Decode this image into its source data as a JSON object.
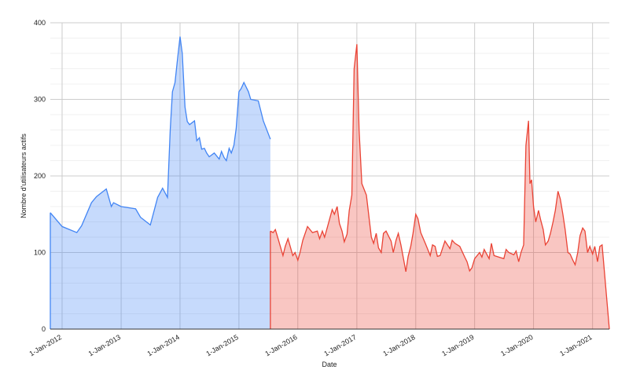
{
  "chart_data": {
    "type": "area",
    "xlabel": "Date",
    "ylabel": "Nombre d'utilisateurs actifs",
    "xlim": [
      "2011-10-20",
      "2021-04-15"
    ],
    "ylim": [
      0,
      400
    ],
    "xticks": [
      {
        "value": "2012-01-01",
        "label": "1-Jan-2012"
      },
      {
        "value": "2013-01-01",
        "label": "1-Jan-2013"
      },
      {
        "value": "2014-01-01",
        "label": "1-Jan-2014"
      },
      {
        "value": "2015-01-01",
        "label": "1-Jan-2015"
      },
      {
        "value": "2016-01-01",
        "label": "1-Jan-2016"
      },
      {
        "value": "2017-01-01",
        "label": "1-Jan-2017"
      },
      {
        "value": "2018-01-01",
        "label": "1-Jan-2018"
      },
      {
        "value": "2019-01-01",
        "label": "1-Jan-2019"
      },
      {
        "value": "2020-01-01",
        "label": "1-Jan-2020"
      },
      {
        "value": "2021-01-01",
        "label": "1-Jan-2021"
      }
    ],
    "yticks": [
      0,
      100,
      200,
      300,
      400
    ],
    "grid": true,
    "minor_grid_divisions": 5,
    "series": [
      {
        "color": "#4285f4",
        "x": [
          "2011-10-20",
          "2012-01-01",
          "2012-04-01",
          "2012-05-01",
          "2012-07-01",
          "2012-08-01",
          "2012-10-01",
          "2012-11-01",
          "2012-11-15",
          "2013-01-01",
          "2013-04-01",
          "2013-05-01",
          "2013-07-01",
          "2013-08-15",
          "2013-09-15",
          "2013-10-15",
          "2013-11-01",
          "2013-11-15",
          "2013-12-01",
          "2013-12-15",
          "2014-01-01",
          "2014-01-15",
          "2014-02-01",
          "2014-02-15",
          "2014-03-01",
          "2014-04-01",
          "2014-04-15",
          "2014-05-01",
          "2014-05-15",
          "2014-06-01",
          "2014-06-15",
          "2014-07-01",
          "2014-08-01",
          "2014-09-01",
          "2014-09-15",
          "2014-10-01",
          "2014-10-15",
          "2014-11-01",
          "2014-11-15",
          "2014-12-01",
          "2014-12-15",
          "2015-01-01",
          "2015-01-15",
          "2015-02-01",
          "2015-03-01",
          "2015-03-15",
          "2015-05-01",
          "2015-06-01",
          "2015-07-15"
        ],
        "values": [
          152,
          134,
          126,
          135,
          165,
          173,
          183,
          160,
          165,
          160,
          157,
          146,
          136,
          172,
          184,
          172,
          260,
          310,
          322,
          350,
          382,
          360,
          290,
          271,
          267,
          272,
          246,
          250,
          235,
          236,
          230,
          225,
          230,
          222,
          232,
          224,
          220,
          236,
          230,
          240,
          262,
          310,
          314,
          322,
          310,
          300,
          298,
          272,
          248
        ]
      },
      {
        "color": "#ea4335",
        "x": [
          "2015-07-15",
          "2015-08-01",
          "2015-08-15",
          "2015-09-01",
          "2015-10-01",
          "2015-10-15",
          "2015-11-01",
          "2015-11-15",
          "2015-12-01",
          "2015-12-15",
          "2016-01-01",
          "2016-01-15",
          "2016-02-01",
          "2016-03-01",
          "2016-04-01",
          "2016-05-01",
          "2016-05-15",
          "2016-06-01",
          "2016-06-15",
          "2016-07-01",
          "2016-08-01",
          "2016-08-15",
          "2016-09-01",
          "2016-09-15",
          "2016-10-01",
          "2016-10-15",
          "2016-11-01",
          "2016-11-15",
          "2016-12-01",
          "2016-12-15",
          "2017-01-01",
          "2017-01-15",
          "2017-02-01",
          "2017-03-01",
          "2017-04-01",
          "2017-04-15",
          "2017-05-01",
          "2017-05-15",
          "2017-06-01",
          "2017-06-15",
          "2017-07-01",
          "2017-08-01",
          "2017-08-15",
          "2017-09-01",
          "2017-09-15",
          "2017-10-01",
          "2017-10-15",
          "2017-11-01",
          "2017-11-15",
          "2017-12-01",
          "2017-12-15",
          "2018-01-01",
          "2018-01-15",
          "2018-02-01",
          "2018-03-01",
          "2018-04-01",
          "2018-04-15",
          "2018-05-01",
          "2018-05-15",
          "2018-06-01",
          "2018-07-01",
          "2018-08-01",
          "2018-08-15",
          "2018-09-01",
          "2018-10-01",
          "2018-11-01",
          "2018-11-15",
          "2018-12-01",
          "2018-12-15",
          "2019-01-01",
          "2019-02-01",
          "2019-02-15",
          "2019-03-01",
          "2019-04-01",
          "2019-04-15",
          "2019-05-01",
          "2019-06-01",
          "2019-07-01",
          "2019-07-15",
          "2019-08-01",
          "2019-09-01",
          "2019-09-15",
          "2019-10-01",
          "2019-10-15",
          "2019-11-01",
          "2019-11-15",
          "2019-12-01",
          "2019-12-10",
          "2019-12-20",
          "2020-01-01",
          "2020-01-15",
          "2020-02-01",
          "2020-02-15",
          "2020-03-01",
          "2020-03-15",
          "2020-04-01",
          "2020-04-15",
          "2020-05-01",
          "2020-05-15",
          "2020-06-01",
          "2020-06-15",
          "2020-07-01",
          "2020-07-15",
          "2020-08-01",
          "2020-08-15",
          "2020-09-01",
          "2020-09-15",
          "2020-10-01",
          "2020-10-15",
          "2020-11-01",
          "2020-11-15",
          "2020-12-01",
          "2020-12-15",
          "2021-01-01",
          "2021-01-15",
          "2021-02-01",
          "2021-02-15",
          "2021-03-01",
          "2021-04-15"
        ],
        "values": [
          128,
          126,
          130,
          118,
          96,
          108,
          118,
          108,
          96,
          100,
          90,
          100,
          116,
          134,
          126,
          128,
          118,
          128,
          120,
          132,
          156,
          150,
          160,
          138,
          128,
          114,
          124,
          155,
          175,
          340,
          372,
          260,
          190,
          175,
          120,
          112,
          125,
          106,
          100,
          125,
          128,
          115,
          100,
          116,
          125,
          110,
          94,
          75,
          95,
          108,
          125,
          150,
          144,
          126,
          112,
          96,
          110,
          108,
          95,
          96,
          115,
          105,
          116,
          112,
          108,
          94,
          88,
          76,
          80,
          92,
          100,
          94,
          104,
          92,
          112,
          96,
          94,
          92,
          104,
          100,
          97,
          102,
          88,
          100,
          110,
          240,
          272,
          190,
          195,
          160,
          140,
          155,
          142,
          130,
          110,
          115,
          125,
          140,
          155,
          180,
          170,
          150,
          130,
          100,
          98,
          90,
          84,
          100,
          122,
          132,
          128,
          100,
          108,
          98,
          108,
          88,
          108,
          110,
          0
        ]
      }
    ]
  }
}
